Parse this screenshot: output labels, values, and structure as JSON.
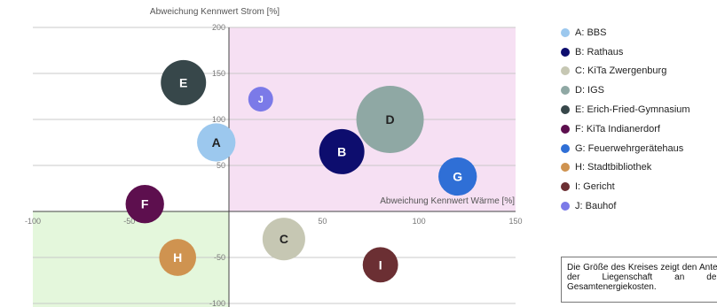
{
  "chart_data": {
    "type": "scatter",
    "title": "",
    "xlabel": "Abweichung Kennwert Wärme [%]",
    "ylabel": "Abweichung Kennwert Strom [%]",
    "xlim": [
      -100,
      150
    ],
    "ylim": [
      -100,
      200
    ],
    "xticks": [
      "-100",
      "-50",
      "50",
      "100",
      "150"
    ],
    "yticks": [
      "200",
      "150",
      "100",
      "50",
      "-50",
      "-100"
    ],
    "grid": true,
    "legend_placement": "right",
    "quadrant_colors": {
      "upper_right": "#f6e0f3",
      "lower_left": "#e4f7dc"
    },
    "points": [
      {
        "id": "A",
        "name": "A: BBS",
        "x": -5,
        "y": 75,
        "size": 1.3,
        "color": "#9cc8ee"
      },
      {
        "id": "B",
        "name": "B: Rathaus",
        "x": 60,
        "y": 65,
        "size": 1.8,
        "color": "#0d0d6e"
      },
      {
        "id": "C",
        "name": "C: KiTa Zwergenburg",
        "x": 30,
        "y": -30,
        "size": 1.6,
        "color": "#c6c7b3"
      },
      {
        "id": "D",
        "name": "D: IGS",
        "x": 85,
        "y": 100,
        "size": 4.0,
        "color": "#8fa8a4"
      },
      {
        "id": "E",
        "name": "E: Erich-Fried-Gymnasium",
        "x": -22,
        "y": 140,
        "size": 1.8,
        "color": "#37474a"
      },
      {
        "id": "F",
        "name": "F: KiTa Indianerdorf",
        "x": -42,
        "y": 8,
        "size": 1.3,
        "color": "#5d0f4e"
      },
      {
        "id": "G",
        "name": "G: Feuerwehrgerätehaus",
        "x": 120,
        "y": 38,
        "size": 1.3,
        "color": "#2f6fd6"
      },
      {
        "id": "H",
        "name": "H: Stadtbibliothek",
        "x": -25,
        "y": -50,
        "size": 1.2,
        "color": "#cf9350"
      },
      {
        "id": "I",
        "name": "I: Gericht",
        "x": 80,
        "y": -58,
        "size": 1.1,
        "color": "#6b2f33"
      },
      {
        "id": "J",
        "name": "J: Bauhof",
        "x": 18,
        "y": 122,
        "size": 0.6,
        "color": "#7b7ae8"
      }
    ]
  },
  "note": "Die Größe des Kreises zeigt den Anteil der Liegenschaft an den Gesamtenergiekosten."
}
